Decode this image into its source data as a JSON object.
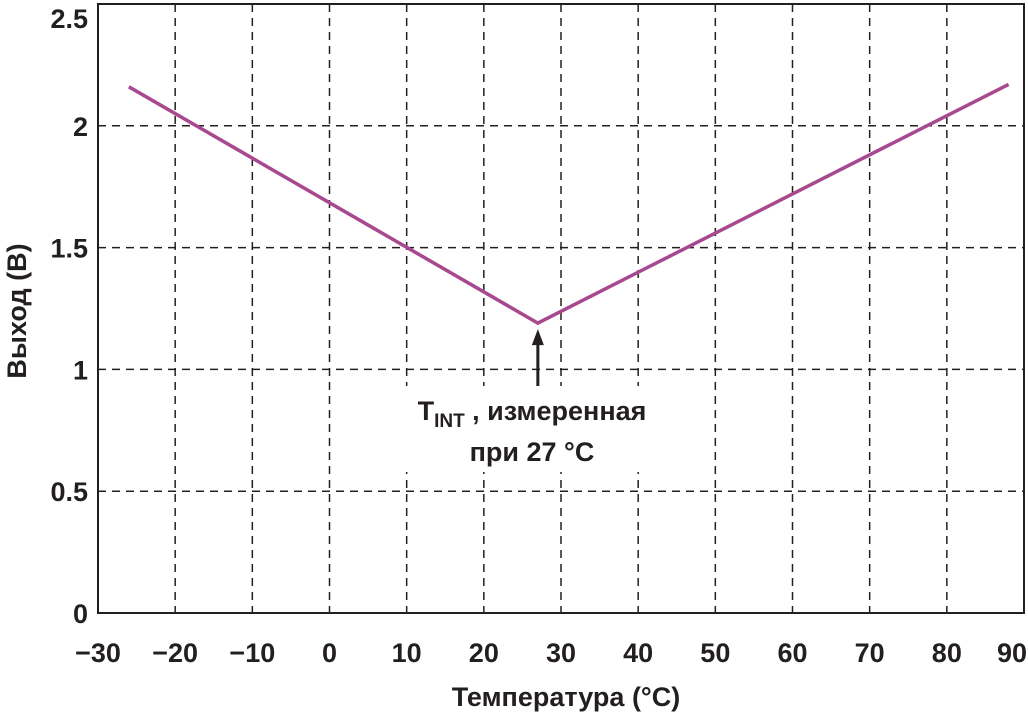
{
  "chart_data": {
    "type": "line",
    "title": "",
    "xlabel": "Температура (°C)",
    "ylabel": "Выход (В)",
    "xlim": [
      -30,
      90
    ],
    "ylim": [
      0,
      2.5
    ],
    "x_ticks": [
      -30,
      -20,
      -10,
      0,
      10,
      20,
      30,
      40,
      50,
      60,
      70,
      80,
      90
    ],
    "x_tick_labels": [
      "−30",
      "−20",
      "−10",
      "0",
      "10",
      "20",
      "30",
      "40",
      "50",
      "60",
      "70",
      "80",
      "90"
    ],
    "y_ticks": [
      0,
      0.5,
      1,
      1.5,
      2,
      2.5
    ],
    "y_tick_labels": [
      "0",
      "0.5",
      "1",
      "1.5",
      "2",
      "2.5"
    ],
    "grid": true,
    "series": [
      {
        "name": "Выход",
        "color": "#a8488e",
        "x": [
          -26,
          27,
          88
        ],
        "y": [
          2.16,
          1.19,
          2.17
        ]
      }
    ],
    "annotation": {
      "x": 27,
      "y": 1.19,
      "main": "T",
      "sub": "INT",
      "line1_rest": " , измеренная",
      "line2": "при 27 °C"
    }
  }
}
